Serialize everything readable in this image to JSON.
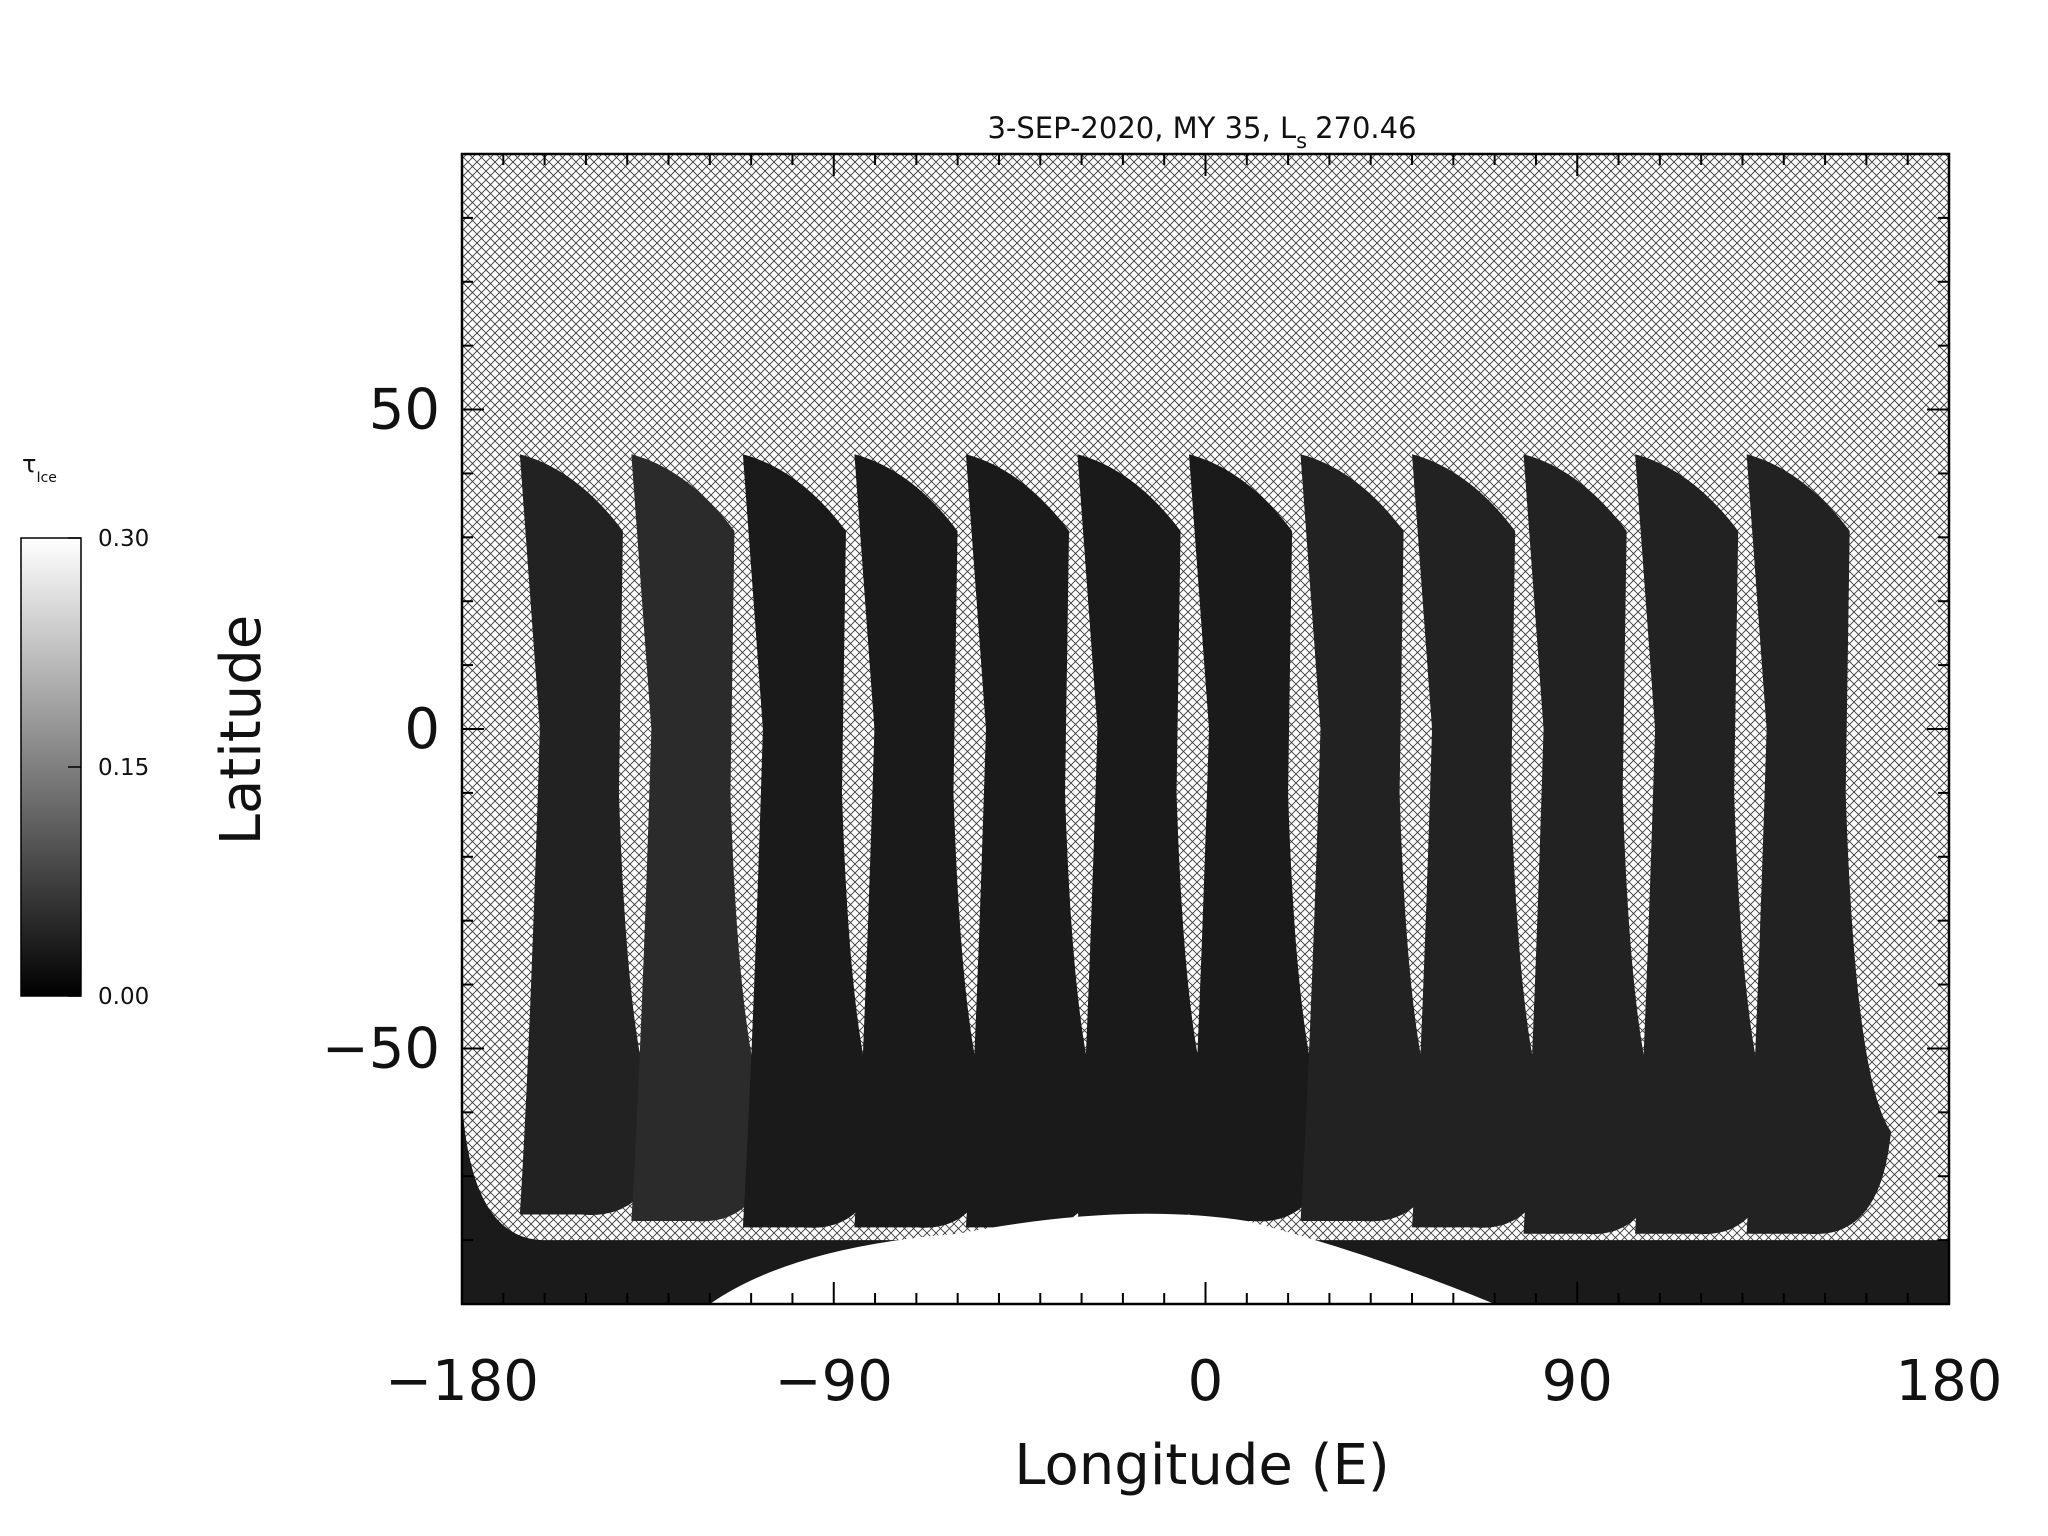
{
  "chart_data": {
    "type": "heatmap",
    "title": "3-SEP-2020, MY 35,  L",
    "title_subscript": "s",
    "title_value": "270.46",
    "xlabel": "Longitude (E)",
    "ylabel": "Latitude",
    "xlim": [
      -180,
      180
    ],
    "ylim": [
      -90,
      90
    ],
    "x_ticks": [
      -180,
      -90,
      0,
      90,
      180
    ],
    "x_tick_labels": [
      "−180",
      "−90",
      "0",
      "90",
      "180"
    ],
    "y_ticks": [
      -50,
      0,
      50
    ],
    "y_tick_labels": [
      "−50",
      "0",
      "50"
    ],
    "grid": false,
    "missing_data_fill": "crosshatch",
    "colormap": "grayscale",
    "colorbar": {
      "label": "τ",
      "label_subscript": "Ice",
      "min": 0.0,
      "max": 0.3,
      "ticks": [
        0.0,
        0.15,
        0.3
      ],
      "tick_labels": [
        "0.00",
        "0.15",
        "0.30"
      ],
      "color_min": "#000000",
      "color_max": "#ffffff"
    },
    "swaths": [
      {
        "lon_top": -166,
        "lat_top": 43,
        "lon_bottom": -161,
        "lat_bottom": -76,
        "value": 0.04
      },
      {
        "lon_top": -139,
        "lat_top": 43,
        "lon_bottom": -134,
        "lat_bottom": -77,
        "value": 0.05
      },
      {
        "lon_top": -112,
        "lat_top": 43,
        "lon_bottom": -107,
        "lat_bottom": -78,
        "value": 0.03
      },
      {
        "lon_top": -85,
        "lat_top": 43,
        "lon_bottom": -80,
        "lat_bottom": -78,
        "value": 0.03
      },
      {
        "lon_top": -58,
        "lat_top": 43,
        "lon_bottom": -53,
        "lat_bottom": -78,
        "value": 0.03
      },
      {
        "lon_top": -31,
        "lat_top": 43,
        "lon_bottom": -26,
        "lat_bottom": -78,
        "value": 0.03
      },
      {
        "lon_top": -4,
        "lat_top": 43,
        "lon_bottom": 1,
        "lat_bottom": -77,
        "value": 0.03
      },
      {
        "lon_top": 23,
        "lat_top": 43,
        "lon_bottom": 28,
        "lat_bottom": -77,
        "value": 0.04
      },
      {
        "lon_top": 50,
        "lat_top": 43,
        "lon_bottom": 55,
        "lat_bottom": -78,
        "value": 0.04
      },
      {
        "lon_top": 77,
        "lat_top": 43,
        "lon_bottom": 82,
        "lat_bottom": -79,
        "value": 0.04
      },
      {
        "lon_top": 104,
        "lat_top": 43,
        "lon_bottom": 109,
        "lat_bottom": -79,
        "value": 0.04
      },
      {
        "lon_top": 131,
        "lat_top": 43,
        "lon_bottom": 136,
        "lat_bottom": -79,
        "value": 0.04
      }
    ],
    "polar_cap": {
      "lon_range": [
        -120,
        70
      ],
      "lat_peak": -74,
      "value": 0.3
    }
  }
}
